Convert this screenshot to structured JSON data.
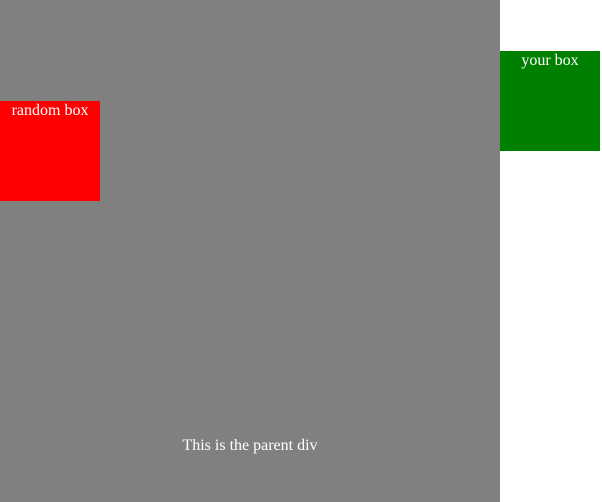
{
  "parent": {
    "label": "This is the parent div",
    "color": "#808080"
  },
  "random_box": {
    "label": "random box",
    "color": "#ff0000"
  },
  "your_box": {
    "label": "your box",
    "color": "#008000"
  }
}
